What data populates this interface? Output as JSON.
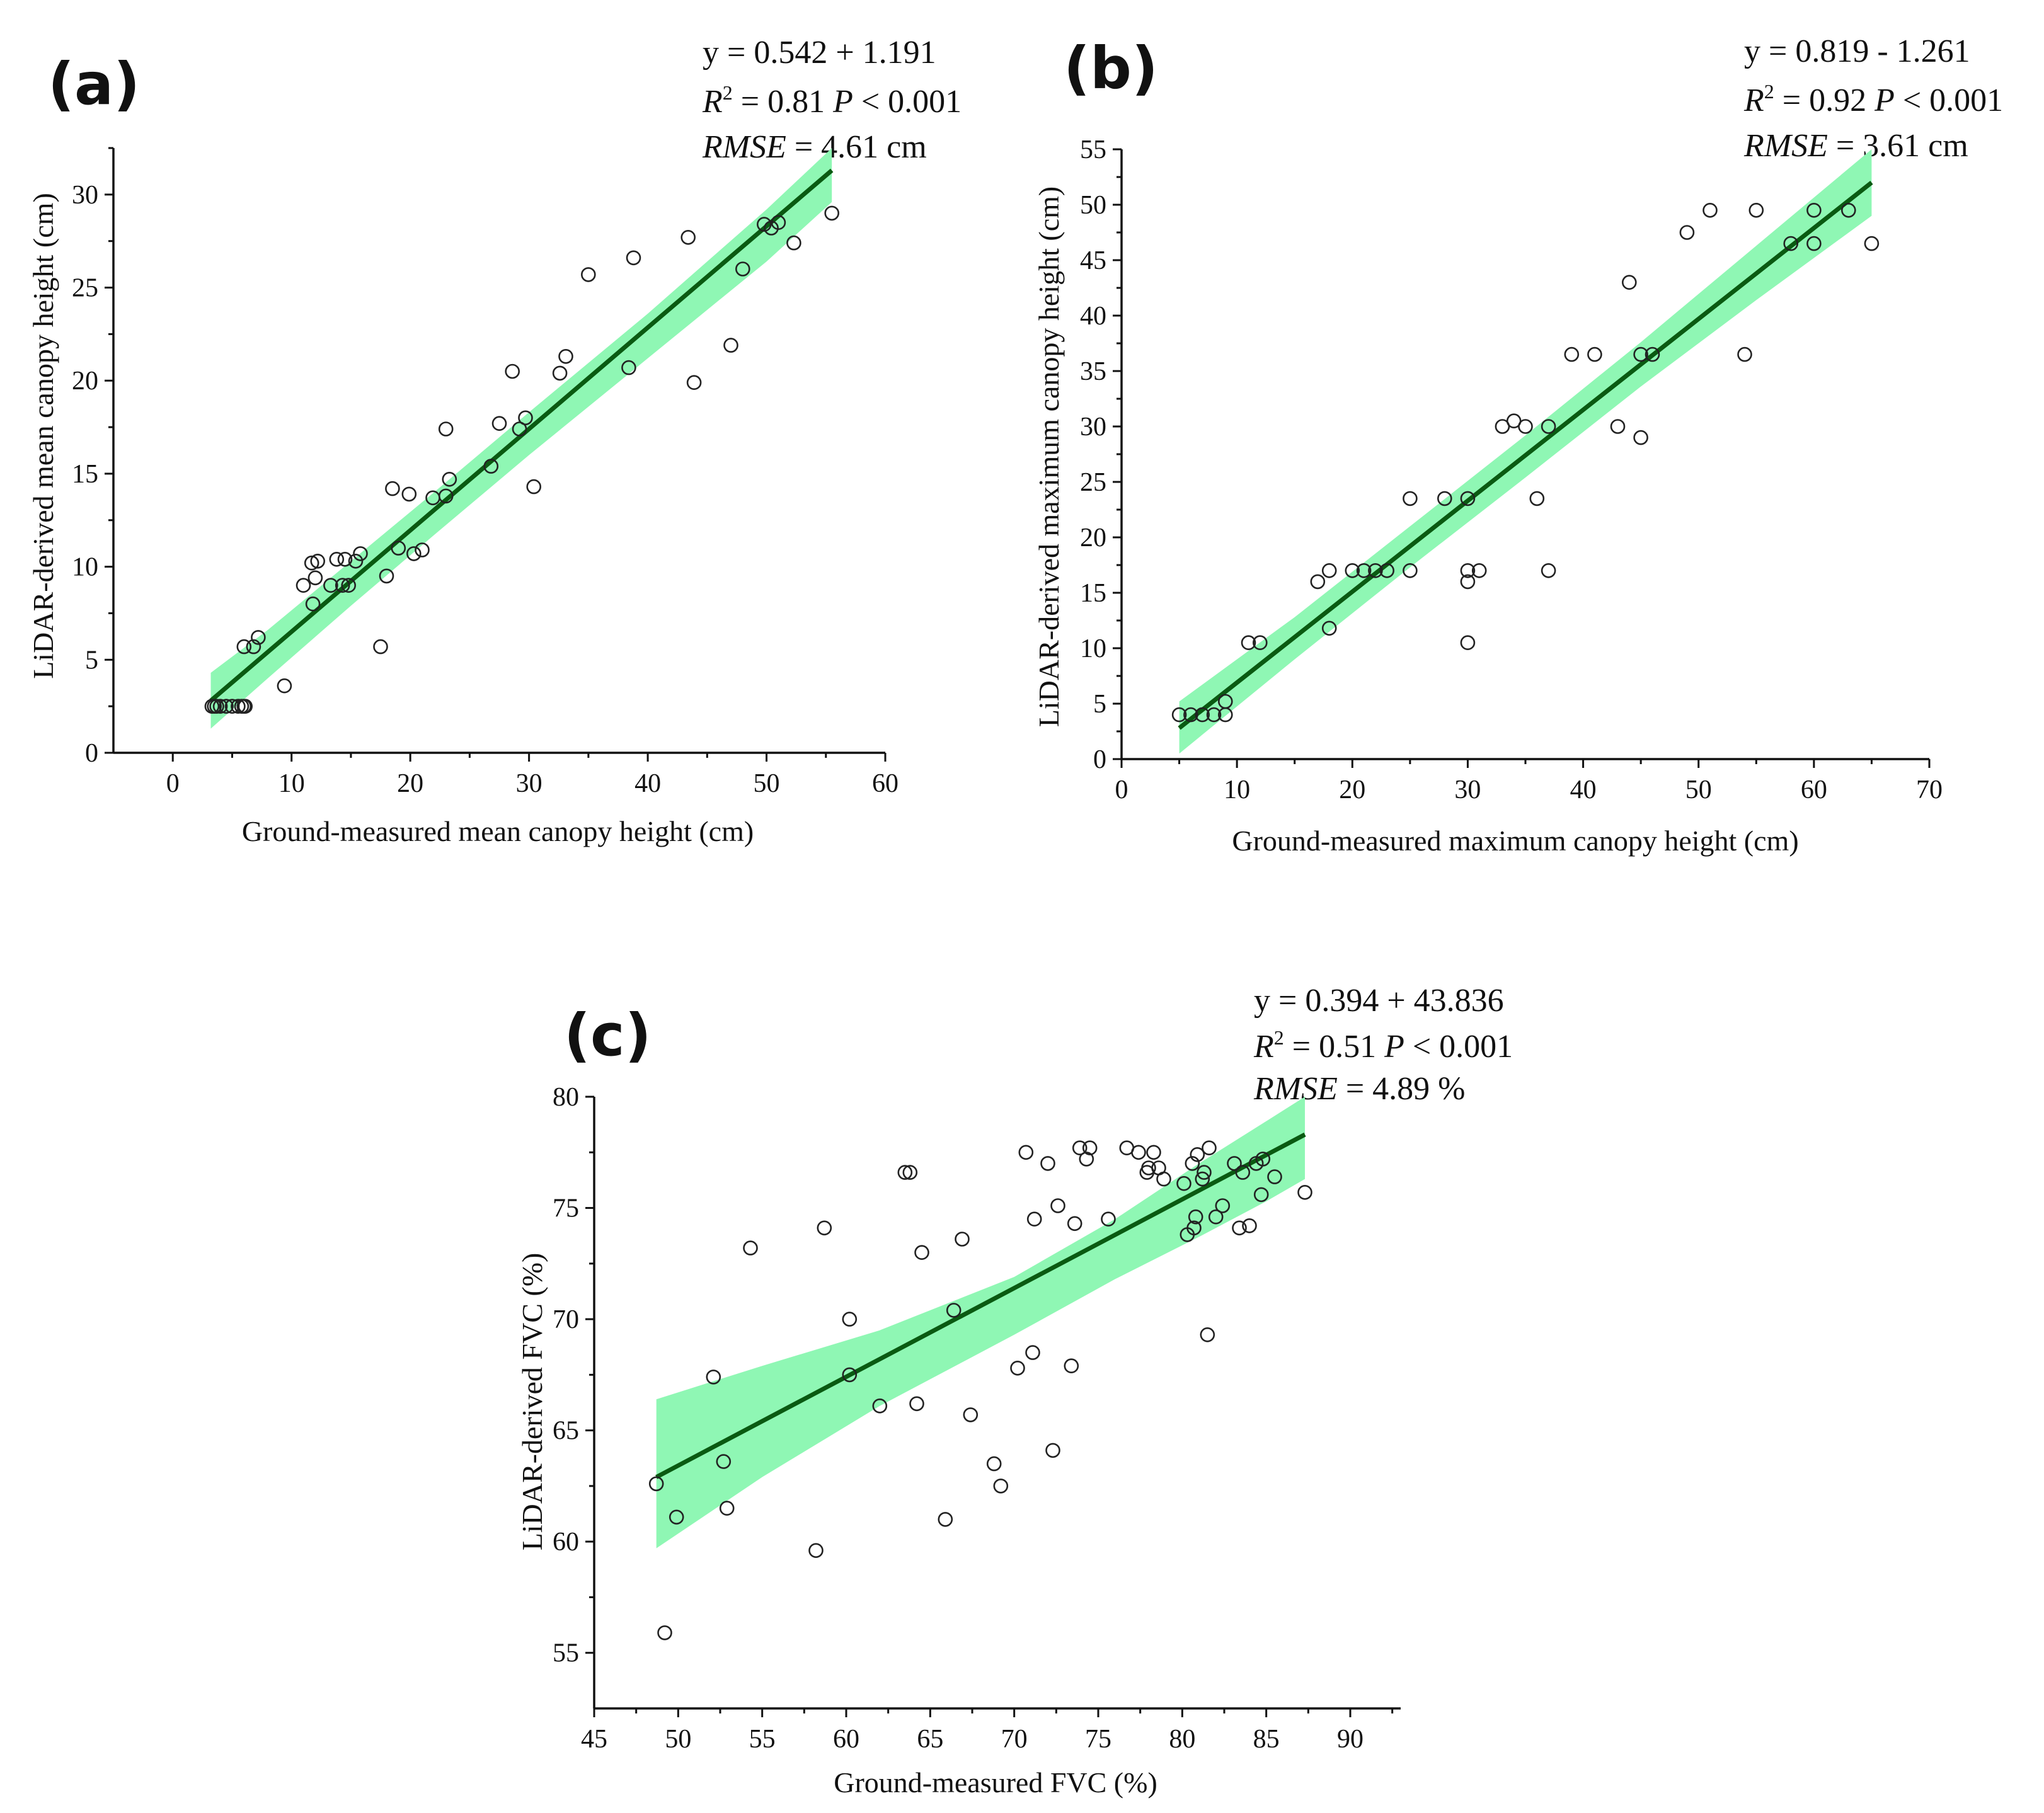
{
  "chart_data": [
    {
      "id": "a",
      "type": "scatter",
      "panel_label": "(a)",
      "xlabel": "Ground-measured mean canopy height (cm)",
      "ylabel": "LiDAR-derived mean canopy height (cm)",
      "xlim": [
        -5,
        60
      ],
      "ylim": [
        0,
        32.5
      ],
      "xticks": [
        0,
        10,
        20,
        30,
        40,
        50,
        60
      ],
      "yticks": [
        0,
        5,
        10,
        15,
        20,
        25,
        30
      ],
      "equation": "y = 0.542 + 1.191",
      "r2_text": "= 0.81",
      "p_text": "< 0.001",
      "rmse_text": "= 4.61 cm",
      "fit": {
        "x": [
          3.2,
          55.5
        ],
        "y": [
          2.8,
          31.3
        ]
      },
      "band": {
        "x": [
          3.2,
          8,
          15,
          22,
          30,
          40,
          50,
          55.5
        ],
        "upper": [
          4.3,
          6.6,
          10.3,
          14.0,
          18.3,
          23.6,
          29.2,
          32.5
        ],
        "lower": [
          1.3,
          4.0,
          7.9,
          11.7,
          16.0,
          21.2,
          26.4,
          29.6
        ]
      },
      "points": {
        "x": [
          3.3,
          3.5,
          3.7,
          4.0,
          4.5,
          5.0,
          5.5,
          5.8,
          6.0,
          6.1,
          6.0,
          6.8,
          7.2,
          9.4,
          11.0,
          11.8,
          12.0,
          12.2,
          11.7,
          13.3,
          13.8,
          14.3,
          14.5,
          14.8,
          15.4,
          15.8,
          17.5,
          18.0,
          18.5,
          19.0,
          19.9,
          20.3,
          21.0,
          21.9,
          23.0,
          23.0,
          23.3,
          26.8,
          27.5,
          28.6,
          29.2,
          29.7,
          30.4,
          32.6,
          33.1,
          35.0,
          38.4,
          38.8,
          43.4,
          43.9,
          47.0,
          48.0,
          49.8,
          50.4,
          51.0,
          52.3,
          55.5
        ],
        "y": [
          2.5,
          2.5,
          2.5,
          2.5,
          2.5,
          2.5,
          2.5,
          2.5,
          2.5,
          2.5,
          5.7,
          5.7,
          6.2,
          3.6,
          9.0,
          8.0,
          9.4,
          10.3,
          10.2,
          9.0,
          10.4,
          9.0,
          10.4,
          9.0,
          10.3,
          10.7,
          5.7,
          9.5,
          14.2,
          11.0,
          13.9,
          10.7,
          10.9,
          13.7,
          17.4,
          13.8,
          14.7,
          15.4,
          17.7,
          20.5,
          17.4,
          18.0,
          14.3,
          20.4,
          21.3,
          25.7,
          20.7,
          26.6,
          27.7,
          19.9,
          21.9,
          26.0,
          28.4,
          28.2,
          28.5,
          27.4,
          29.0
        ]
      }
    },
    {
      "id": "b",
      "type": "scatter",
      "panel_label": "(b)",
      "xlabel": "Ground-measured maximum canopy height (cm)",
      "ylabel": "LiDAR-derived maximum canopy height (cm)",
      "xlim": [
        0,
        70
      ],
      "ylim": [
        0,
        55
      ],
      "xticks": [
        0,
        10,
        20,
        30,
        40,
        50,
        60,
        70
      ],
      "yticks": [
        0,
        5,
        10,
        15,
        20,
        25,
        30,
        35,
        40,
        45,
        50,
        55
      ],
      "equation": "y = 0.819 - 1.261",
      "r2_text": "= 0.92",
      "p_text": "< 0.001",
      "rmse_text": "= 3.61 cm",
      "fit": {
        "x": [
          5,
          65
        ],
        "y": [
          2.8,
          52.0
        ]
      },
      "band": {
        "x": [
          5,
          15,
          25,
          35,
          45,
          55,
          65
        ],
        "upper": [
          5.2,
          12.8,
          21.0,
          29.2,
          37.6,
          46.3,
          55.0
        ],
        "lower": [
          0.5,
          9.0,
          17.3,
          25.4,
          33.6,
          41.4,
          49.0
        ]
      },
      "points": {
        "x": [
          5,
          6,
          7,
          8,
          9,
          9,
          11,
          12,
          17,
          18,
          18,
          20,
          21,
          22,
          23,
          25,
          25,
          28,
          30,
          30,
          30,
          30,
          31,
          33,
          34,
          35,
          36,
          37,
          37,
          39,
          41,
          43,
          44,
          45,
          45,
          46,
          49,
          51,
          54,
          55,
          58,
          60,
          60,
          63,
          65
        ],
        "y": [
          4,
          4,
          4,
          4,
          4,
          5.2,
          10.5,
          10.5,
          16,
          17,
          11.8,
          17,
          17,
          17,
          17,
          23.5,
          17,
          23.5,
          23.5,
          17,
          16,
          10.5,
          17,
          30,
          30.5,
          30,
          23.5,
          30,
          17,
          36.5,
          36.5,
          30,
          43,
          36.5,
          29,
          36.5,
          47.5,
          49.5,
          36.5,
          49.5,
          46.5,
          49.5,
          46.5,
          49.5,
          46.5
        ]
      }
    },
    {
      "id": "c",
      "type": "scatter",
      "panel_label": "(c)",
      "xlabel": "Ground-measured FVC (%)",
      "ylabel": "LiDAR-derived FVC (%)",
      "xlim": [
        45,
        93
      ],
      "ylim": [
        52.5,
        80
      ],
      "xticks": [
        45,
        50,
        55,
        60,
        65,
        70,
        75,
        80,
        85,
        90
      ],
      "yticks": [
        55,
        60,
        65,
        70,
        75,
        80
      ],
      "equation": "y = 0.394 + 43.836",
      "r2_text": "= 0.51",
      "p_text": "< 0.001",
      "rmse_text": "= 4.89 %",
      "fit": {
        "x": [
          48.7,
          87.3
        ],
        "y": [
          62.9,
          78.3
        ]
      },
      "band": {
        "x": [
          48.7,
          55,
          62,
          70,
          76,
          81,
          85,
          87.3
        ],
        "upper": [
          66.4,
          67.9,
          69.5,
          71.9,
          74.5,
          77.0,
          78.9,
          80.0
        ],
        "lower": [
          59.7,
          62.9,
          66.1,
          69.3,
          71.8,
          73.7,
          75.3,
          76.3
        ]
      },
      "points": {
        "x": [
          48.7,
          49.2,
          49.9,
          52.1,
          52.7,
          52.9,
          54.3,
          58.2,
          58.7,
          60.2,
          60.2,
          62.0,
          63.5,
          63.8,
          64.2,
          64.5,
          65.9,
          66.4,
          66.9,
          67.4,
          68.8,
          69.2,
          70.2,
          70.7,
          71.1,
          71.2,
          72.0,
          72.3,
          72.6,
          73.4,
          73.6,
          73.9,
          74.3,
          74.5,
          75.6,
          76.7,
          77.4,
          77.9,
          78.0,
          78.3,
          78.6,
          78.9,
          80.1,
          80.3,
          80.6,
          80.7,
          80.8,
          80.9,
          81.2,
          81.3,
          81.5,
          81.6,
          82.0,
          82.4,
          83.1,
          83.4,
          83.6,
          84.0,
          84.4,
          84.7,
          84.8,
          85.5,
          87.3
        ],
        "y": [
          62.6,
          55.9,
          61.1,
          67.4,
          63.6,
          61.5,
          73.2,
          59.6,
          74.1,
          70.0,
          67.5,
          66.1,
          76.6,
          76.6,
          66.2,
          73.0,
          61.0,
          70.4,
          73.6,
          65.7,
          63.5,
          62.5,
          67.8,
          77.5,
          68.5,
          74.5,
          77.0,
          64.1,
          75.1,
          67.9,
          74.3,
          77.7,
          77.2,
          77.7,
          74.5,
          77.7,
          77.5,
          76.6,
          76.8,
          77.5,
          76.8,
          76.3,
          76.1,
          73.8,
          77.0,
          74.1,
          74.6,
          77.4,
          76.3,
          76.6,
          69.3,
          77.7,
          74.6,
          75.1,
          77.0,
          74.1,
          76.6,
          74.2,
          77.0,
          75.6,
          77.2,
          76.4,
          75.7
        ]
      }
    }
  ]
}
